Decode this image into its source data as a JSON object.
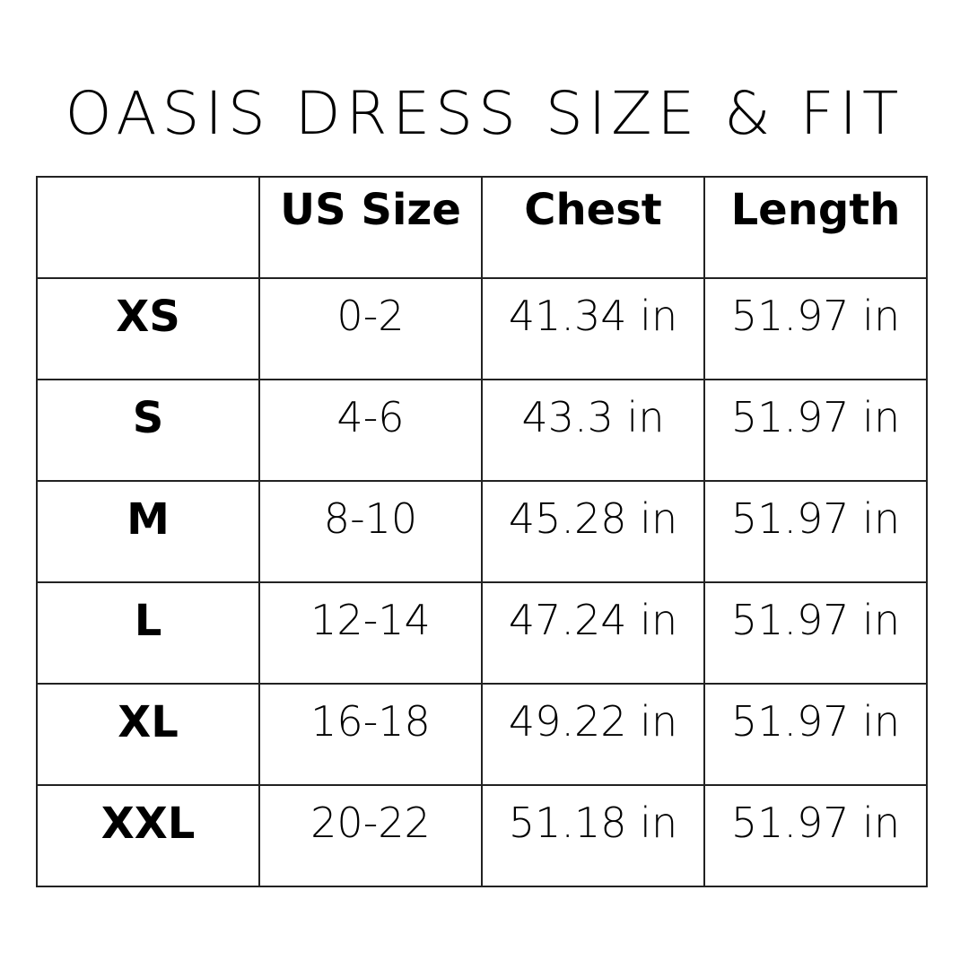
{
  "title": "OASIS DRESS SIZE & FIT",
  "headers": [
    "",
    "US Size",
    "Chest",
    "Length"
  ],
  "rows": [
    [
      "XS",
      "0-2",
      "41.34 in",
      "51.97 in"
    ],
    [
      "S",
      "4-6",
      "43.3 in",
      "51.97 in"
    ],
    [
      "M",
      "8-10",
      "45.28 in",
      "51.97 in"
    ],
    [
      "L",
      "12-14",
      "47.24 in",
      "51.97 in"
    ],
    [
      "XL",
      "16-18",
      "49.22 in",
      "51.97 in"
    ],
    [
      "XXL",
      "20-22",
      "51.18 in",
      "51.97 in"
    ]
  ]
}
